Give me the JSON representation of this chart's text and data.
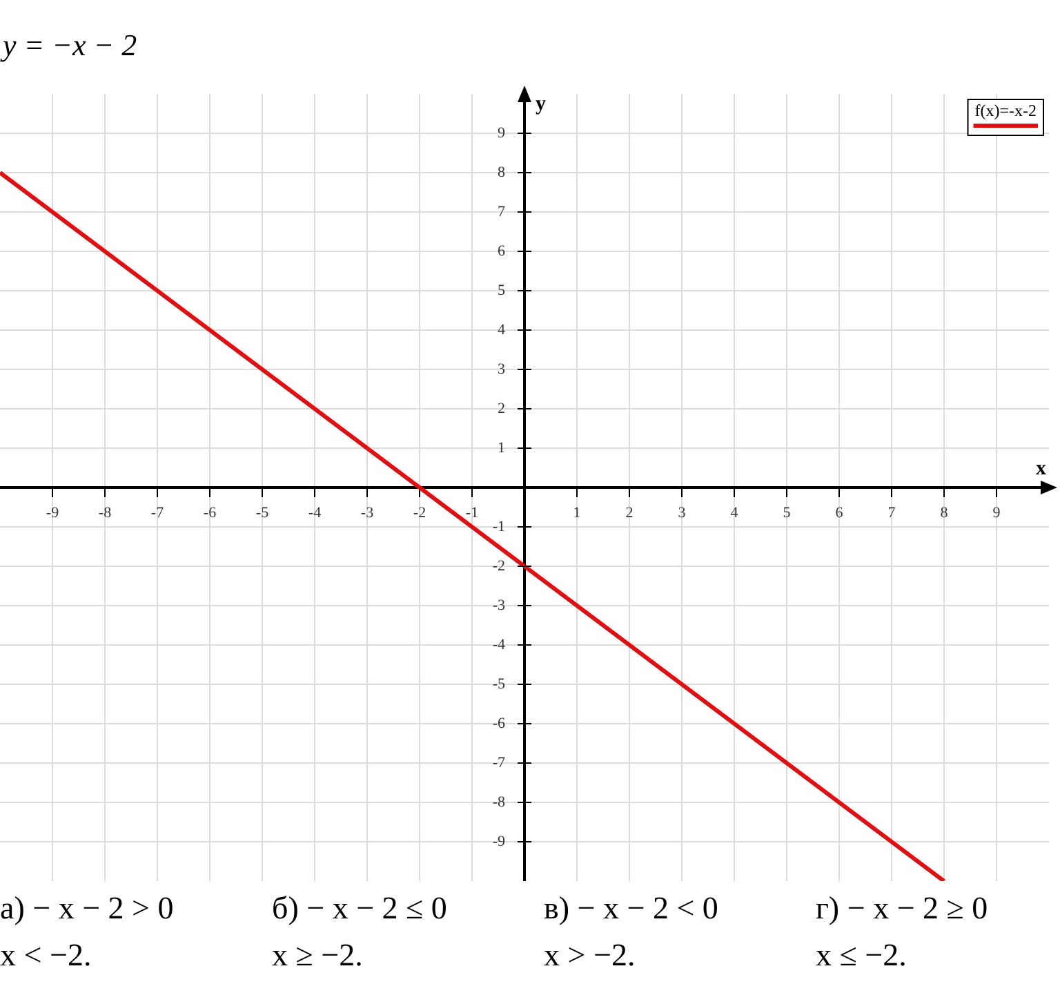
{
  "chart_data": {
    "type": "line",
    "title": "y = −x − 2",
    "xlabel": "x",
    "ylabel": "y",
    "x": [
      -10,
      8
    ],
    "series": [
      {
        "name": "f(x)=-x-2",
        "color": "#e01010",
        "values": [
          8,
          -10
        ]
      }
    ],
    "xlim": [
      -10,
      10
    ],
    "ylim": [
      -10,
      10
    ],
    "xticks": [
      -9,
      -8,
      -7,
      -6,
      -5,
      -4,
      -3,
      -2,
      -1,
      {
        "value": 0,
        "label": null
      },
      1,
      2,
      3,
      4,
      5,
      6,
      7,
      8,
      9
    ],
    "yticks": [
      -9,
      -8,
      -7,
      -6,
      -5,
      -4,
      -3,
      -2,
      -1,
      {
        "value": 0,
        "label": null
      },
      1,
      2,
      3,
      4,
      5,
      6,
      7,
      8,
      9
    ],
    "grid": true,
    "legend": "top right",
    "marker": "none",
    "line_style": "solid",
    "annotations": [
      "а) − x − 2 > 0",
      "б) − x − 2 ≤ 0",
      "в) − x − 2 < 0",
      "г) − x − 2 ≥ 0",
      "x < −2.",
      "x ≥ −2.",
      "x > −2.",
      "x ≤ −2."
    ]
  }
}
